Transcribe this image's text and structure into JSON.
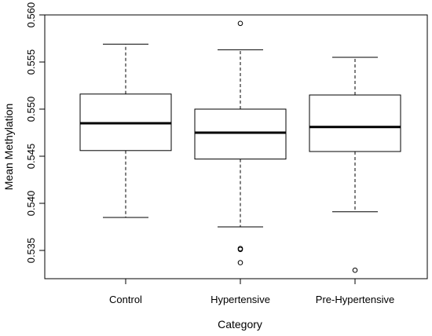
{
  "chart_data": {
    "type": "box",
    "xlabel": "Category",
    "ylabel": "Mean Methylation",
    "ylim": [
      0.532,
      0.56
    ],
    "yticks": [
      0.535,
      0.54,
      0.545,
      0.55,
      0.555,
      0.56
    ],
    "ytick_labels": [
      "0.535",
      "0.540",
      "0.545",
      "0.550",
      "0.555",
      "0.560"
    ],
    "categories": [
      "Control",
      "Hypertensive",
      "Pre-Hypertensive"
    ],
    "boxes": [
      {
        "name": "Control",
        "whisker_low": 0.5385,
        "q1": 0.5456,
        "median": 0.5485,
        "q3": 0.5516,
        "whisker_high": 0.5569,
        "outliers": []
      },
      {
        "name": "Hypertensive",
        "whisker_low": 0.5375,
        "q1": 0.5447,
        "median": 0.5475,
        "q3": 0.55,
        "whisker_high": 0.5563,
        "outliers": [
          0.5591,
          0.5352,
          0.5351,
          0.5337
        ]
      },
      {
        "name": "Pre-Hypertensive",
        "whisker_low": 0.5391,
        "q1": 0.5455,
        "median": 0.5481,
        "q3": 0.5515,
        "whisker_high": 0.5555,
        "outliers": [
          0.5329
        ]
      }
    ],
    "grid": false,
    "legend": "none"
  }
}
